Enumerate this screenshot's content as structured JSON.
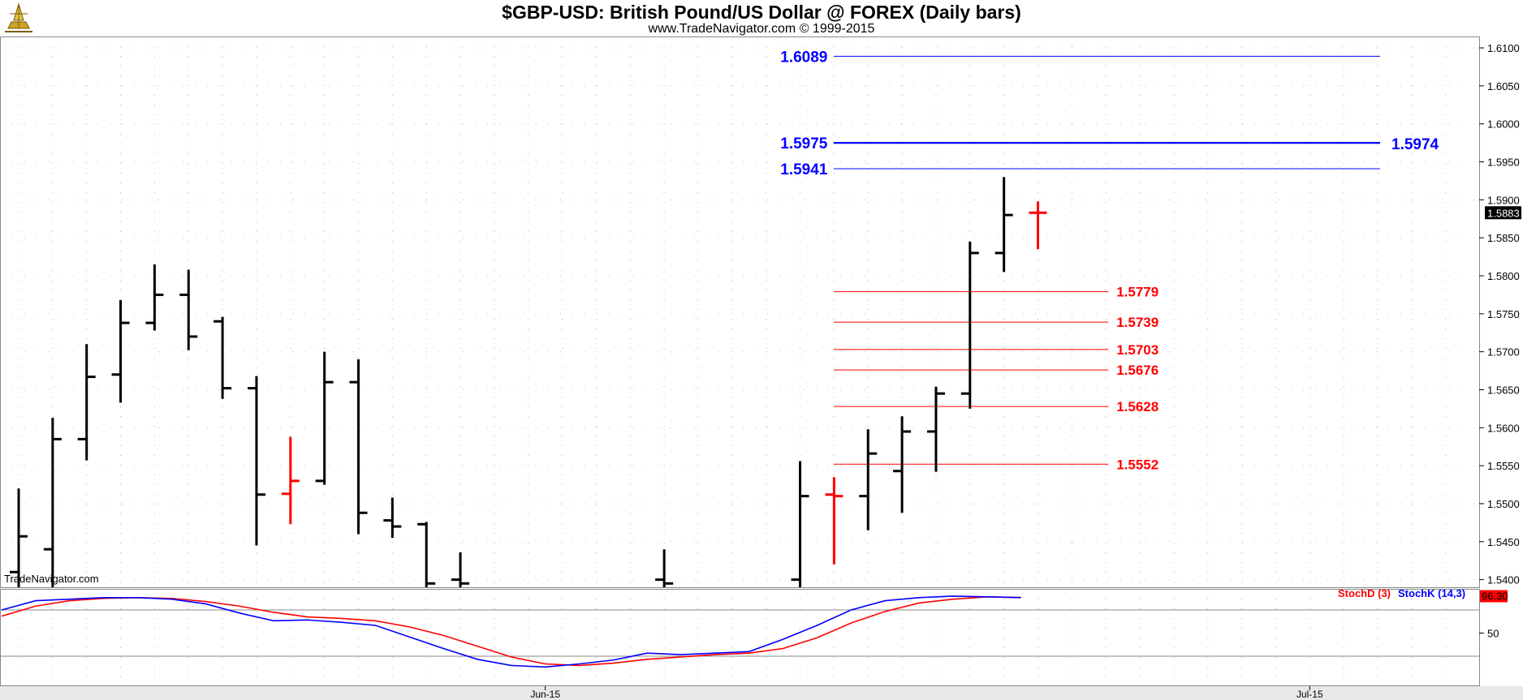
{
  "header": {
    "title": "$GBP-USD:  British Pound/US Dollar @ FOREX  (Daily bars)",
    "subtitle": "www.TradeNavigator.com © 1999-2015",
    "watermark": "TradeNavigator.com"
  },
  "colors": {
    "up_bar": "#000000",
    "down_bar": "#ff0000",
    "level_blue": "#0000ff",
    "level_red": "#ff0000",
    "stoch_d": "#ff0000",
    "stoch_k": "#0000ff",
    "last_price_bg": "#000000",
    "last_stoch_bg": "#ff0000"
  },
  "chart_data": [
    {
      "type": "ohlc",
      "title": "$GBP-USD:  British Pound/US Dollar @ FOREX  (Daily bars)",
      "ylim": [
        1.539,
        1.6115
      ],
      "y_ticks": [
        "1.6100",
        "1.6050",
        "1.6000",
        "1.5950",
        "1.5900",
        "1.5850",
        "1.5800",
        "1.5750",
        "1.5700",
        "1.5650",
        "1.5600",
        "1.5550",
        "1.5500",
        "1.5450",
        "1.5400"
      ],
      "x_ticks": [
        {
          "label": "Jun-15",
          "index": 15.5
        },
        {
          "label": "Jul-15",
          "index": 38
        }
      ],
      "last_price": "1.5883",
      "bars": [
        {
          "i": 0,
          "o": 1.541,
          "h": 1.552,
          "l": 1.539,
          "c": 1.5457,
          "dir": "up"
        },
        {
          "i": 1,
          "o": 1.544,
          "h": 1.5613,
          "l": 1.539,
          "c": 1.5585,
          "dir": "up"
        },
        {
          "i": 2,
          "o": 1.5585,
          "h": 1.571,
          "l": 1.5557,
          "c": 1.5667,
          "dir": "up"
        },
        {
          "i": 3,
          "o": 1.567,
          "h": 1.5768,
          "l": 1.5633,
          "c": 1.5738,
          "dir": "up"
        },
        {
          "i": 4,
          "o": 1.5738,
          "h": 1.5815,
          "l": 1.5728,
          "c": 1.5775,
          "dir": "up"
        },
        {
          "i": 5,
          "o": 1.5775,
          "h": 1.5808,
          "l": 1.5702,
          "c": 1.572,
          "dir": "up"
        },
        {
          "i": 6,
          "o": 1.574,
          "h": 1.5746,
          "l": 1.5638,
          "c": 1.5652,
          "dir": "up"
        },
        {
          "i": 7,
          "o": 1.5652,
          "h": 1.5668,
          "l": 1.5445,
          "c": 1.5512,
          "dir": "up"
        },
        {
          "i": 8,
          "o": 1.5513,
          "h": 1.5588,
          "l": 1.5473,
          "c": 1.553,
          "dir": "down"
        },
        {
          "i": 9,
          "o": 1.553,
          "h": 1.57,
          "l": 1.5525,
          "c": 1.566,
          "dir": "up"
        },
        {
          "i": 10,
          "o": 1.566,
          "h": 1.569,
          "l": 1.546,
          "c": 1.5488,
          "dir": "up"
        },
        {
          "i": 11,
          "o": 1.5478,
          "h": 1.5508,
          "l": 1.5455,
          "c": 1.547,
          "dir": "up"
        },
        {
          "i": 12,
          "o": 1.5473,
          "h": 1.5476,
          "l": 1.539,
          "c": 1.5395,
          "dir": "up"
        },
        {
          "i": 13,
          "o": 1.54,
          "h": 1.5436,
          "l": 1.539,
          "c": 1.5395,
          "dir": "up"
        },
        {
          "i": 19,
          "o": 1.54,
          "h": 1.544,
          "l": 1.539,
          "c": 1.5395,
          "dir": "up"
        },
        {
          "i": 23,
          "o": 1.54,
          "h": 1.5556,
          "l": 1.539,
          "c": 1.551,
          "dir": "up"
        },
        {
          "i": 24,
          "o": 1.5512,
          "h": 1.5535,
          "l": 1.542,
          "c": 1.551,
          "dir": "down"
        },
        {
          "i": 25,
          "o": 1.551,
          "h": 1.5598,
          "l": 1.5465,
          "c": 1.5566,
          "dir": "up"
        },
        {
          "i": 26,
          "o": 1.5543,
          "h": 1.5615,
          "l": 1.5488,
          "c": 1.5595,
          "dir": "up"
        },
        {
          "i": 27,
          "o": 1.5595,
          "h": 1.5654,
          "l": 1.5542,
          "c": 1.5645,
          "dir": "up"
        },
        {
          "i": 28,
          "o": 1.5645,
          "h": 1.5845,
          "l": 1.5625,
          "c": 1.583,
          "dir": "up"
        },
        {
          "i": 29,
          "o": 1.583,
          "h": 1.593,
          "l": 1.5805,
          "c": 1.588,
          "dir": "up"
        },
        {
          "i": 30,
          "o": 1.5883,
          "h": 1.5898,
          "l": 1.5835,
          "c": 1.5883,
          "dir": "down"
        }
      ],
      "levels": [
        {
          "value": 1.6089,
          "label": "1.6089",
          "color": "blue",
          "weight": 1,
          "label_side": "left",
          "from_index": 24,
          "to_index": 40
        },
        {
          "value": 1.5975,
          "label": "1.5975",
          "color": "blue",
          "weight": 2.2,
          "label_side": "left",
          "from_index": 24,
          "to_index": 40
        },
        {
          "value": 1.5974,
          "label": "1.5974",
          "color": "blue",
          "weight": 0,
          "label_side": "right",
          "from_index": 40,
          "to_index": 40
        },
        {
          "value": 1.5941,
          "label": "1.5941",
          "color": "blue",
          "weight": 1,
          "label_side": "left",
          "from_index": 24,
          "to_index": 40
        },
        {
          "value": 1.5779,
          "label": "1.5779",
          "color": "red",
          "weight": 1,
          "label_side": "right",
          "from_index": 24,
          "to_index": 32
        },
        {
          "value": 1.5739,
          "label": "1.5739",
          "color": "red",
          "weight": 1,
          "label_side": "right",
          "from_index": 24,
          "to_index": 32
        },
        {
          "value": 1.5703,
          "label": "1.5703",
          "color": "red",
          "weight": 1,
          "label_side": "right",
          "from_index": 24,
          "to_index": 32
        },
        {
          "value": 1.5676,
          "label": "1.5676",
          "color": "red",
          "weight": 1,
          "label_side": "right",
          "from_index": 24,
          "to_index": 32
        },
        {
          "value": 1.5628,
          "label": "1.5628",
          "color": "red",
          "weight": 1,
          "label_side": "right",
          "from_index": 24,
          "to_index": 32
        },
        {
          "value": 1.5552,
          "label": "1.5552",
          "color": "red",
          "weight": 1,
          "label_side": "right",
          "from_index": 24,
          "to_index": 32
        }
      ]
    },
    {
      "type": "line",
      "ylim": [
        0,
        100
      ],
      "y_ticks": [
        "50"
      ],
      "reference_lines": [
        80,
        20
      ],
      "last_value": "96.30",
      "series": [
        {
          "name": "StochD (3)",
          "color": "red",
          "x": [
            0,
            1,
            2,
            3,
            4,
            5,
            6,
            7,
            8,
            9,
            10,
            11,
            12,
            13,
            14,
            15,
            16,
            17,
            18,
            19,
            20,
            21,
            22,
            23,
            24,
            25,
            26,
            27,
            28,
            29,
            30
          ],
          "values": [
            72,
            85,
            92,
            95,
            96,
            95,
            91,
            85,
            77,
            71,
            69,
            66,
            58,
            47,
            33,
            19,
            10,
            8,
            11,
            16,
            19,
            22,
            24,
            30,
            44,
            63,
            78,
            89,
            94,
            97,
            96.3
          ]
        },
        {
          "name": "StochK (14,3)",
          "color": "blue",
          "x": [
            0,
            1,
            2,
            3,
            4,
            5,
            6,
            7,
            8,
            9,
            10,
            11,
            12,
            13,
            14,
            15,
            16,
            17,
            18,
            19,
            20,
            21,
            22,
            23,
            24,
            25,
            26,
            27,
            28,
            29,
            30
          ],
          "values": [
            80,
            92,
            94,
            96,
            96,
            94,
            88,
            76,
            66,
            67,
            64,
            60,
            45,
            30,
            16,
            8,
            6,
            10,
            15,
            24,
            22,
            24,
            26,
            42,
            60,
            80,
            92,
            96,
            98,
            97,
            96
          ]
        }
      ]
    }
  ]
}
